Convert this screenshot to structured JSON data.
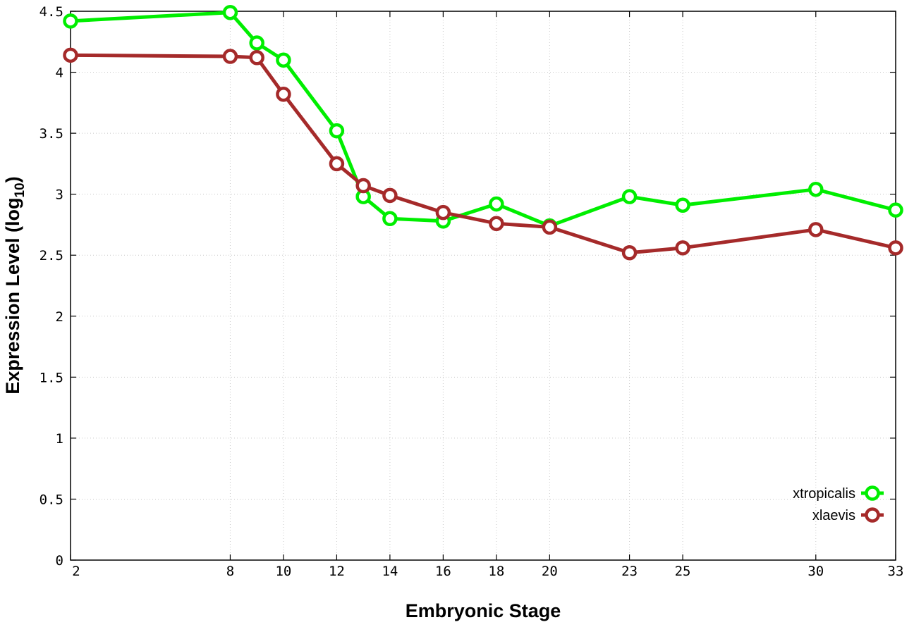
{
  "chart_data": {
    "type": "line",
    "xlabel": "Embryonic Stage",
    "ylabel": "Expression Level (log",
    "ylabel_subscript": "10",
    "ylabel_close": ")",
    "ylim": [
      0,
      4.5
    ],
    "y_ticks": [
      "0",
      "0.5",
      "1",
      "1.5",
      "2",
      "2.5",
      "3",
      "3.5",
      "4",
      "4.5"
    ],
    "y_tick_values": [
      0,
      0.5,
      1,
      1.5,
      2,
      2.5,
      3,
      3.5,
      4,
      4.5
    ],
    "x_ticks": [
      "2",
      "8",
      "10",
      "12",
      "14",
      "16",
      "18",
      "20",
      "23",
      "25",
      "30",
      "33"
    ],
    "x_tick_values": [
      2,
      8,
      10,
      12,
      14,
      16,
      18,
      20,
      23,
      25,
      30,
      33
    ],
    "xlim": [
      2,
      33
    ],
    "grid": true,
    "legend_position": "bottom-right",
    "series": [
      {
        "name": "xtropicalis",
        "color": "#00ee00",
        "x": [
          2,
          8,
          9,
          10,
          12,
          13,
          14,
          16,
          18,
          20,
          23,
          25,
          30,
          33
        ],
        "values": [
          4.42,
          4.49,
          4.24,
          4.1,
          3.52,
          2.98,
          2.8,
          2.78,
          2.92,
          2.74,
          2.98,
          2.91,
          3.04,
          2.87
        ]
      },
      {
        "name": "xlaevis",
        "color": "#a52a2a",
        "x": [
          2,
          8,
          9,
          10,
          12,
          13,
          14,
          16,
          18,
          20,
          23,
          25,
          30,
          33
        ],
        "values": [
          4.14,
          4.13,
          4.12,
          3.82,
          3.25,
          3.07,
          2.99,
          2.85,
          2.76,
          2.73,
          2.52,
          2.56,
          2.71,
          2.56
        ]
      }
    ]
  }
}
